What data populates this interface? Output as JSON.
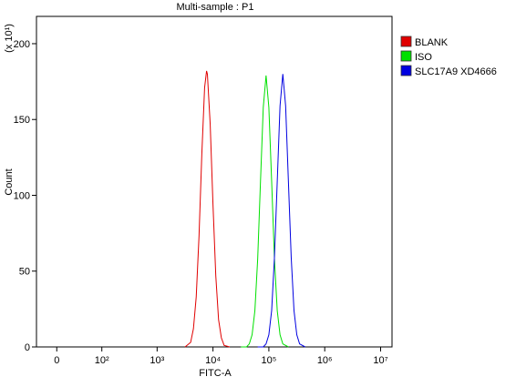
{
  "chart_data": {
    "type": "line",
    "title": "Multi-sample : P1",
    "x_label": "FITC-A",
    "y_label": "Count",
    "y_multiplier": "(x 10¹)",
    "xscale": "biexponential",
    "xlim": [
      -30,
      16000000
    ],
    "xticks": [
      0,
      {
        "value": 100,
        "label": "10²"
      },
      {
        "value": 1000,
        "label": "10³"
      },
      {
        "value": 10000,
        "label": "10⁴"
      },
      {
        "value": 100000,
        "label": "10⁵"
      },
      {
        "value": 1000000,
        "label": "10⁶"
      },
      {
        "value": 10000000,
        "label": "10⁷"
      }
    ],
    "ylim": [
      0,
      218
    ],
    "yticks": [
      0,
      50,
      100,
      150,
      200
    ],
    "legend": "right",
    "series": [
      {
        "name": "BLANK",
        "color": "#e00000",
        "x": [
          3162,
          3981,
          4467,
          5012,
          5623,
          6310,
          7079,
          7674,
          7943,
          8913,
          10000,
          11220,
          12589,
          14125,
          15849,
          19953
        ],
        "values": [
          0,
          3,
          12,
          33,
          73,
          127,
          171,
          182,
          180,
          147,
          94,
          47,
          18,
          6,
          1,
          0
        ]
      },
      {
        "name": "ISO",
        "color": "#00e000",
        "x": [
          31623,
          39811,
          44668,
          50119,
          56234,
          63096,
          70795,
          79433,
          89125,
          100000,
          112202,
          125893,
          141254,
          158489,
          177828,
          223872
        ],
        "values": [
          0,
          0,
          2,
          8,
          24,
          58,
          109,
          158,
          179,
          158,
          109,
          58,
          24,
          8,
          2,
          0
        ]
      },
      {
        "name": "SLC17A9 XD4666",
        "color": "#0000e0",
        "x": [
          63096,
          79433,
          89125,
          100000,
          112202,
          125893,
          141254,
          158489,
          177828,
          199526,
          223872,
          251189,
          281838,
          316228,
          354813,
          446684
        ],
        "values": [
          0,
          0,
          2,
          8,
          24,
          59,
          109,
          159,
          180,
          159,
          109,
          59,
          24,
          8,
          2,
          0
        ]
      }
    ]
  }
}
